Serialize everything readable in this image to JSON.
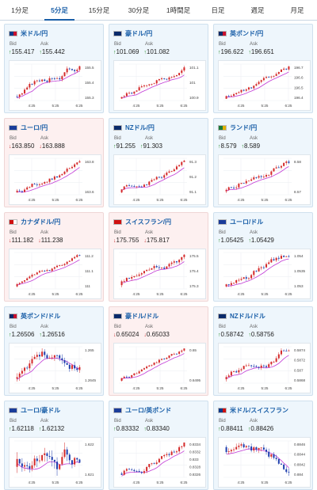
{
  "tabs": [
    "1分足",
    "5分足",
    "15分足",
    "30分足",
    "1時間足",
    "日足",
    "週足",
    "月足"
  ],
  "active_tab": 1,
  "labels": {
    "bid": "Bid",
    "ask": "Ask"
  },
  "cards": [
    {
      "pair": "米ドル/円",
      "trend": "up",
      "flag": [
        "#0a3a8a",
        "#c8102e"
      ],
      "bid": "155.417",
      "ask": "155.442",
      "yticks": [
        "155.5",
        "155.4",
        "155.3"
      ],
      "xticks": [
        "4:25",
        "5:25",
        "6:25"
      ],
      "seed": 3,
      "drift": 1
    },
    {
      "pair": "豪ドル/円",
      "trend": "up",
      "flag": [
        "#0a2a6a",
        "#0a2a6a"
      ],
      "bid": "101.069",
      "ask": "101.082",
      "yticks": [
        "101.1",
        "101",
        "100.9"
      ],
      "xticks": [
        "4:25",
        "5:25",
        "6:25"
      ],
      "seed": 7,
      "drift": 1
    },
    {
      "pair": "英ポンド/円",
      "trend": "up",
      "flag": [
        "#0a2a6a",
        "#c8102e"
      ],
      "bid": "196.622",
      "ask": "196.651",
      "yticks": [
        "196.7",
        "196.6",
        "196.5",
        "196.4"
      ],
      "xticks": [
        "4:25",
        "5:25",
        "6:25"
      ],
      "seed": 11,
      "drift": 1
    },
    {
      "pair": "ユーロ/円",
      "trend": "down",
      "flag": [
        "#1a3c9a",
        "#1a3c9a"
      ],
      "bid": "163.850",
      "ask": "163.888",
      "yticks": [
        "163.8",
        "163.6"
      ],
      "xticks": [
        "4:25",
        "5:25",
        "6:25"
      ],
      "seed": 13,
      "drift": 1
    },
    {
      "pair": "NZドル/円",
      "trend": "up",
      "flag": [
        "#0a2a6a",
        "#0a2a6a"
      ],
      "bid": "91.255",
      "ask": "91.303",
      "yticks": [
        "91.3",
        "91.2",
        "91.1"
      ],
      "xticks": [
        "4:25",
        "5:25",
        "6:25"
      ],
      "seed": 17,
      "drift": 1
    },
    {
      "pair": "ランド/円",
      "trend": "up",
      "flag": [
        "#1a7a3a",
        "#e0b000"
      ],
      "bid": "8.579",
      "ask": "8.589",
      "yticks": [
        "8.58",
        "8.57"
      ],
      "xticks": [
        "4:25",
        "5:25",
        "6:25"
      ],
      "seed": 19,
      "drift": 0.6
    },
    {
      "pair": "カナダドル/円",
      "trend": "down",
      "flag": [
        "#d01010",
        "#ffffff"
      ],
      "bid": "111.182",
      "ask": "111.238",
      "yticks": [
        "111.2",
        "111.1",
        "111"
      ],
      "xticks": [
        "4:25",
        "5:25",
        "6:25"
      ],
      "seed": 23,
      "drift": 1
    },
    {
      "pair": "スイスフラン/円",
      "trend": "down",
      "flag": [
        "#d01010",
        "#d01010"
      ],
      "bid": "175.755",
      "ask": "175.817",
      "yticks": [
        "175.5",
        "175.4",
        "175.3"
      ],
      "xticks": [
        "4:25",
        "5:25",
        "6:25"
      ],
      "seed": 29,
      "drift": 1
    },
    {
      "pair": "ユーロ/ドル",
      "trend": "up",
      "flag": [
        "#1a3c9a",
        "#1a3c9a"
      ],
      "bid": "1.05425",
      "ask": "1.05429",
      "yticks": [
        "1.054",
        "1.0535",
        "1.053"
      ],
      "xticks": [
        "4:25",
        "5:25",
        "6:25"
      ],
      "seed": 31,
      "drift": 0.9
    },
    {
      "pair": "英ポンド/ドル",
      "trend": "up",
      "flag": [
        "#0a2a6a",
        "#c8102e"
      ],
      "bid": "1.26506",
      "ask": "1.26516",
      "yticks": [
        "1.265",
        "1.2645"
      ],
      "xticks": [
        "4:25",
        "5:25",
        "6:25"
      ],
      "seed": 37,
      "drift": -0.2
    },
    {
      "pair": "豪ドル/ドル",
      "trend": "down",
      "flag": [
        "#0a2a6a",
        "#0a2a6a"
      ],
      "bid": "0.65024",
      "ask": "0.65033",
      "yticks": [
        "0.65",
        "0.6495"
      ],
      "xticks": [
        "4:25",
        "5:25",
        "6:25"
      ],
      "seed": 41,
      "drift": 1
    },
    {
      "pair": "NZドル/ドル",
      "trend": "up",
      "flag": [
        "#0a2a6a",
        "#0a2a6a"
      ],
      "bid": "0.58742",
      "ask": "0.58756",
      "yticks": [
        "0.5874",
        "0.5872",
        "0.587",
        "0.5868"
      ],
      "xticks": [
        "4:25",
        "5:25",
        "6:25"
      ],
      "seed": 43,
      "drift": 1
    },
    {
      "pair": "ユーロ/豪ドル",
      "trend": "up",
      "flag": [
        "#1a3c9a",
        "#1a3c9a"
      ],
      "bid": "1.62118",
      "ask": "1.62132",
      "yticks": [
        "1.622",
        "1.621"
      ],
      "xticks": [
        "4:25",
        "5:25",
        "6:25"
      ],
      "seed": 47,
      "drift": -0.7
    },
    {
      "pair": "ユーロ/英ポンド",
      "trend": "up",
      "flag": [
        "#1a3c9a",
        "#1a3c9a"
      ],
      "bid": "0.83332",
      "ask": "0.83340",
      "yticks": [
        "0.8334",
        "0.8332",
        "0.833",
        "0.8328",
        "0.8326"
      ],
      "xticks": [
        "4:25",
        "5:25",
        "6:25"
      ],
      "seed": 53,
      "drift": 1
    },
    {
      "pair": "米ドル/スイスフラン",
      "trend": "up",
      "flag": [
        "#0a3a8a",
        "#d01010"
      ],
      "bid": "0.88411",
      "ask": "0.88426",
      "yticks": [
        "0.8846",
        "0.8844",
        "0.8842",
        "0.884"
      ],
      "xticks": [
        "4:25",
        "5:25",
        "6:25"
      ],
      "seed": 59,
      "drift": -0.8
    }
  ]
}
